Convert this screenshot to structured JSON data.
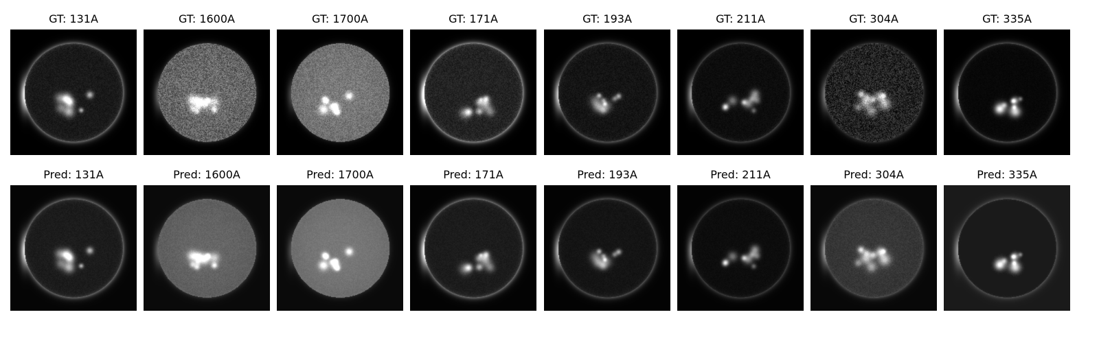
{
  "figure": {
    "rows": [
      {
        "kind": "ground-truth",
        "panels": [
          {
            "title": "GT: 131A",
            "channel": "131A",
            "disk_brightness": 0.1,
            "limb_brightness": 0.55,
            "noise": 0.08,
            "bg": "#000000"
          },
          {
            "title": "GT: 1600A",
            "channel": "1600A",
            "disk_brightness": 0.42,
            "limb_brightness": 0.2,
            "noise": 0.35,
            "bg": "#000000"
          },
          {
            "title": "GT: 1700A",
            "channel": "1700A",
            "disk_brightness": 0.48,
            "limb_brightness": 0.15,
            "noise": 0.22,
            "bg": "#000000"
          },
          {
            "title": "GT: 171A",
            "channel": "171A",
            "disk_brightness": 0.14,
            "limb_brightness": 0.7,
            "noise": 0.12,
            "bg": "#000000"
          },
          {
            "title": "GT: 193A",
            "channel": "193A",
            "disk_brightness": 0.08,
            "limb_brightness": 0.45,
            "noise": 0.08,
            "bg": "#000000"
          },
          {
            "title": "GT: 211A",
            "channel": "211A",
            "disk_brightness": 0.05,
            "limb_brightness": 0.35,
            "noise": 0.05,
            "bg": "#000000"
          },
          {
            "title": "GT: 304A",
            "channel": "304A",
            "disk_brightness": 0.14,
            "limb_brightness": 0.25,
            "noise": 0.3,
            "bg": "#000000"
          },
          {
            "title": "GT: 335A",
            "channel": "335A",
            "disk_brightness": 0.03,
            "limb_brightness": 0.4,
            "noise": 0.03,
            "bg": "#000000"
          }
        ]
      },
      {
        "kind": "prediction",
        "panels": [
          {
            "title": "Pred: 131A",
            "channel": "131A",
            "disk_brightness": 0.11,
            "limb_brightness": 0.5,
            "noise": 0.05,
            "bg": "#050505"
          },
          {
            "title": "Pred: 1600A",
            "channel": "1600A",
            "disk_brightness": 0.4,
            "limb_brightness": 0.18,
            "noise": 0.08,
            "bg": "#0a0a0a"
          },
          {
            "title": "Pred: 1700A",
            "channel": "1700A",
            "disk_brightness": 0.47,
            "limb_brightness": 0.14,
            "noise": 0.06,
            "bg": "#0a0a0a"
          },
          {
            "title": "Pred: 171A",
            "channel": "171A",
            "disk_brightness": 0.11,
            "limb_brightness": 0.55,
            "noise": 0.05,
            "bg": "#030303"
          },
          {
            "title": "Pred: 193A",
            "channel": "193A",
            "disk_brightness": 0.08,
            "limb_brightness": 0.4,
            "noise": 0.04,
            "bg": "#030303"
          },
          {
            "title": "Pred: 211A",
            "channel": "211A",
            "disk_brightness": 0.05,
            "limb_brightness": 0.3,
            "noise": 0.03,
            "bg": "#030303"
          },
          {
            "title": "Pred: 304A",
            "channel": "304A",
            "disk_brightness": 0.22,
            "limb_brightness": 0.3,
            "noise": 0.08,
            "bg": "#080808"
          },
          {
            "title": "Pred: 335A",
            "channel": "335A",
            "disk_brightness": 0.08,
            "limb_brightness": 0.28,
            "noise": 0.04,
            "bg": "#1a1a1a"
          }
        ]
      }
    ]
  }
}
